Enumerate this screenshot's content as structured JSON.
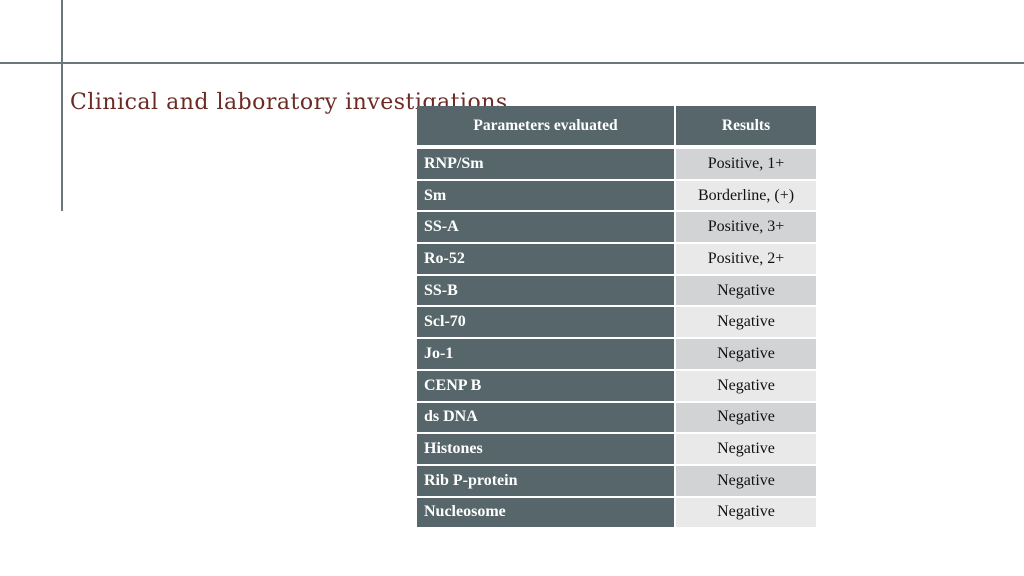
{
  "slide": {
    "title": "Clinical and laboratory investigations",
    "colors": {
      "title": "#6b2b24",
      "table_dark": "#56666a",
      "row_light": "#d2d3d4",
      "row_lighter": "#e9e9ea"
    }
  },
  "table": {
    "headers": [
      "Parameters evaluated",
      "Results"
    ],
    "rows": [
      {
        "parameter": "RNP/Sm",
        "result": "Positive, 1+"
      },
      {
        "parameter": "Sm",
        "result": "Borderline, (+)"
      },
      {
        "parameter": "SS-A",
        "result": "Positive, 3+"
      },
      {
        "parameter": "Ro-52",
        "result": "Positive, 2+"
      },
      {
        "parameter": "SS-B",
        "result": "Negative"
      },
      {
        "parameter": "Scl-70",
        "result": "Negative"
      },
      {
        "parameter": "Jo-1",
        "result": "Negative"
      },
      {
        "parameter": "CENP B",
        "result": "Negative"
      },
      {
        "parameter": "ds DNA",
        "result": "Negative"
      },
      {
        "parameter": "Histones",
        "result": "Negative"
      },
      {
        "parameter": "Rib P-protein",
        "result": "Negative"
      },
      {
        "parameter": "Nucleosome",
        "result": "Negative"
      }
    ]
  }
}
